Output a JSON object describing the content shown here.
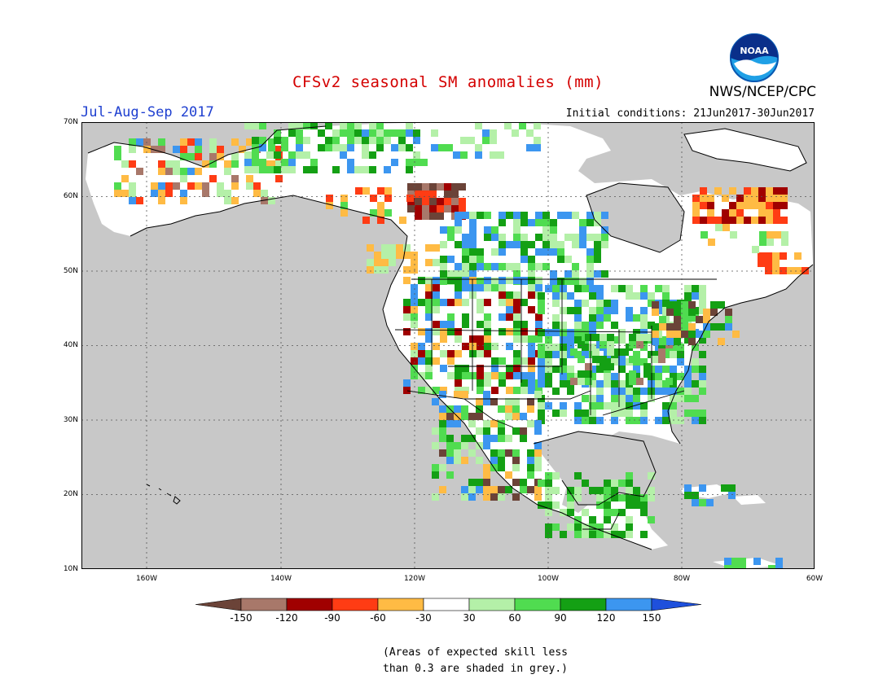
{
  "title": "CFSv2 seasonal SM anomalies (mm)",
  "season": "Jul-Aug-Sep 2017",
  "initial_conditions": "Initial conditions: 21Jun2017-30Jun2017",
  "agency": "NWS/NCEP/CPC",
  "logo_text": "NOAA",
  "map": {
    "lat_labels": [
      "70N",
      "60N",
      "50N",
      "40N",
      "30N",
      "20N",
      "10N"
    ],
    "lon_labels": [
      "160W",
      "140W",
      "120W",
      "100W",
      "80W",
      "60W"
    ],
    "grey_color": "#c8c8c8",
    "land_color": "#ffffff"
  },
  "legend": {
    "labels": [
      "-150",
      "-120",
      "-90",
      "-60",
      "-30",
      "30",
      "60",
      "90",
      "120",
      "150"
    ],
    "colors": {
      "lt_minus150": "#6b4338",
      "minus150_minus120": "#a8786a",
      "minus120_minus90": "#a00000",
      "minus90_minus60": "#ff3c14",
      "minus60_minus30": "#ffbb44",
      "minus30_30": "#ffffff",
      "30_60": "#b4f0a8",
      "60_90": "#50dc50",
      "90_120": "#14a014",
      "120_150": "#3c96f0",
      "gt_150": "#1e50dc"
    }
  },
  "footnote": [
    "(Areas of expected skill less",
    "than 0.3 are shaded in grey.)"
  ]
}
